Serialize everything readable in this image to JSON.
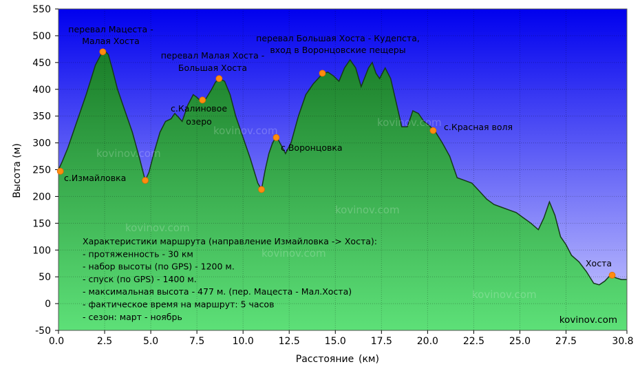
{
  "chart_data": {
    "type": "area",
    "title": "",
    "xlabel": "Расстояние",
    "xunit": "(км)",
    "ylabel": "Высота (м)",
    "xlim": [
      0,
      30.8
    ],
    "ylim": [
      -50,
      550
    ],
    "x_ticks": [
      0.0,
      2.5,
      5.0,
      7.5,
      10.0,
      12.5,
      15.0,
      17.5,
      20.0,
      22.5,
      25.0,
      27.5,
      30.8
    ],
    "x_tick_labels": [
      "0.0",
      "2.5",
      "5.0",
      "7.5",
      "10.0",
      "12.5",
      "15.0",
      "17.5",
      "20.0",
      "22.5",
      "25.0",
      "27.5",
      "30.8"
    ],
    "y_ticks": [
      -50,
      0,
      50,
      100,
      150,
      200,
      250,
      300,
      350,
      400,
      450,
      500,
      550
    ],
    "grid": true,
    "series": [
      {
        "name": "Высота",
        "x": [
          0,
          0.2,
          0.5,
          1.0,
          1.5,
          2.0,
          2.3,
          2.5,
          2.7,
          2.9,
          3.2,
          3.6,
          4.0,
          4.4,
          4.7,
          4.9,
          5.2,
          5.5,
          5.8,
          6.1,
          6.3,
          6.5,
          6.7,
          7.0,
          7.3,
          7.5,
          7.7,
          8.0,
          8.3,
          8.5,
          8.7,
          9.0,
          9.3,
          9.6,
          10.0,
          10.4,
          10.8,
          11.0,
          11.2,
          11.4,
          11.6,
          11.8,
          12.0,
          12.3,
          12.6,
          13.0,
          13.4,
          13.8,
          14.2,
          14.4,
          14.6,
          14.9,
          15.2,
          15.5,
          15.8,
          16.1,
          16.4,
          16.8,
          17.0,
          17.2,
          17.4,
          17.7,
          18.0,
          18.3,
          18.6,
          18.9,
          19.2,
          19.5,
          19.8,
          20.1,
          20.4,
          20.8,
          21.2,
          21.6,
          22.0,
          22.4,
          22.8,
          23.2,
          23.6,
          24.0,
          24.4,
          24.8,
          25.2,
          25.6,
          26.0,
          26.3,
          26.6,
          26.9,
          27.2,
          27.5,
          27.8,
          28.2,
          28.6,
          29.0,
          29.3,
          29.6,
          29.9,
          30.2,
          30.5,
          30.8
        ],
        "y": [
          250,
          265,
          290,
          340,
          390,
          445,
          465,
          472,
          465,
          440,
          400,
          360,
          320,
          270,
          230,
          245,
          285,
          320,
          340,
          345,
          355,
          348,
          340,
          370,
          390,
          385,
          378,
          383,
          400,
          413,
          420,
          415,
          390,
          350,
          310,
          270,
          225,
          213,
          250,
          280,
          300,
          312,
          300,
          280,
          300,
          350,
          390,
          410,
          425,
          430,
          432,
          425,
          415,
          440,
          455,
          440,
          405,
          440,
          450,
          430,
          420,
          440,
          420,
          375,
          330,
          330,
          360,
          355,
          340,
          332,
          322,
          300,
          275,
          235,
          230,
          225,
          210,
          195,
          185,
          180,
          175,
          170,
          160,
          150,
          138,
          160,
          190,
          165,
          125,
          110,
          90,
          78,
          60,
          38,
          35,
          42,
          53,
          48,
          45,
          45
        ]
      }
    ],
    "points": [
      {
        "x": 0.1,
        "y": 247,
        "label": "с.Измайловка"
      },
      {
        "x": 2.4,
        "y": 470,
        "label": "перевал Мацеста - Малая Хоста"
      },
      {
        "x": 4.7,
        "y": 230,
        "label": ""
      },
      {
        "x": 7.8,
        "y": 380,
        "label": "с.Калиновое озеро"
      },
      {
        "x": 8.7,
        "y": 420,
        "label": "перевал Малая Хоста - Большая Хоста"
      },
      {
        "x": 11.0,
        "y": 213,
        "label": ""
      },
      {
        "x": 11.8,
        "y": 310,
        "label": "с.Воронцовка"
      },
      {
        "x": 14.3,
        "y": 430,
        "label": "перевал Большая Хоста - Кудепста, вход в Воронцовские пещеры"
      },
      {
        "x": 20.3,
        "y": 323,
        "label": "с.Красная воля"
      },
      {
        "x": 30.0,
        "y": 53,
        "label": "Хоста"
      }
    ],
    "point_labels": [
      {
        "lines": [
          "с.Измайловка"
        ]
      },
      {
        "lines": [
          "перевал Мацеста -",
          "Малая Хоста"
        ]
      },
      {
        "lines": [
          "перевал Малая Хоста -",
          "Большая Хоста"
        ]
      },
      {
        "lines": [
          "с.Калиновое",
          "озеро"
        ]
      },
      {
        "lines": [
          "с.Воронцовка"
        ]
      },
      {
        "lines": [
          "перевал Большая Хоста - Кудепста,",
          "вход в Воронцовские пещеры"
        ]
      },
      {
        "lines": [
          "с.Красная воля"
        ]
      },
      {
        "lines": [
          "Хоста"
        ]
      }
    ],
    "info_box": {
      "lines": [
        "Характеристики маршрута (направление Измайловка -> Хоста):",
        "- протяженность - 30 км",
        "- набор высоты (по GPS) - 1200 м.",
        "- спуск (по GPS) - 1400 м.",
        "- максимальная высота - 477 м. (пер. Мацеста - Мал.Хоста)",
        "- фактическое время на маршрут: 5 часов",
        "- сезон: март - ноябрь"
      ]
    },
    "watermark": "kovinov.com",
    "colors": {
      "sky_top": "#0000ee",
      "sky_bottom": "#d0d0ff",
      "fill_top": "#1a7d28",
      "fill_bottom": "#5de078",
      "outline": "#153818",
      "point": "#ff8c10"
    }
  }
}
